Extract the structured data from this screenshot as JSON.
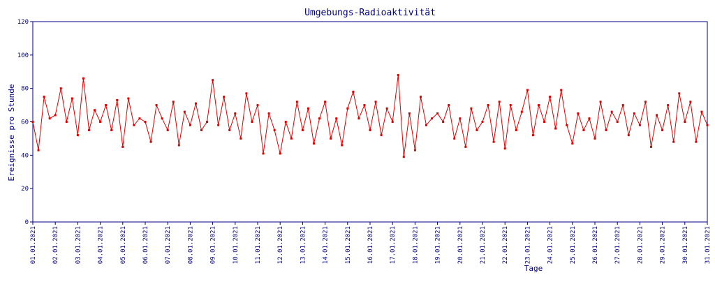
{
  "chart_data": {
    "type": "line",
    "title": "Umgebungs-Radioaktivität",
    "xlabel": "Tage",
    "ylabel": "Ereignisse pro Stunde",
    "color": "#e00000",
    "xlim": [
      0,
      30
    ],
    "ylim": [
      0,
      120
    ],
    "yticks": [
      0,
      20,
      40,
      60,
      80,
      100,
      120
    ],
    "xticks": [
      {
        "value": 0,
        "label": "01.01.2021"
      },
      {
        "value": 1,
        "label": "02.01.2021"
      },
      {
        "value": 2,
        "label": "03.01.2021"
      },
      {
        "value": 3,
        "label": "04.01.2021"
      },
      {
        "value": 4,
        "label": "05.01.2021"
      },
      {
        "value": 5,
        "label": "06.01.2021"
      },
      {
        "value": 6,
        "label": "07.01.2021"
      },
      {
        "value": 7,
        "label": "08.01.2021"
      },
      {
        "value": 8,
        "label": "09.01.2021"
      },
      {
        "value": 9,
        "label": "10.01.2021"
      },
      {
        "value": 10,
        "label": "11.01.2021"
      },
      {
        "value": 11,
        "label": "12.01.2021"
      },
      {
        "value": 12,
        "label": "13.01.2021"
      },
      {
        "value": 13,
        "label": "14.01.2021"
      },
      {
        "value": 14,
        "label": "15.01.2021"
      },
      {
        "value": 15,
        "label": "16.01.2021"
      },
      {
        "value": 16,
        "label": "17.01.2021"
      },
      {
        "value": 17,
        "label": "18.01.2021"
      },
      {
        "value": 18,
        "label": "19.01.2021"
      },
      {
        "value": 19,
        "label": "20.01.2021"
      },
      {
        "value": 20,
        "label": "21.01.2021"
      },
      {
        "value": 21,
        "label": "22.01.2021"
      },
      {
        "value": 22,
        "label": "23.01.2021"
      },
      {
        "value": 23,
        "label": "24.01.2021"
      },
      {
        "value": 24,
        "label": "25.01.2021"
      },
      {
        "value": 25,
        "label": "26.01.2021"
      },
      {
        "value": 26,
        "label": "27.01.2021"
      },
      {
        "value": 27,
        "label": "28.01.2021"
      },
      {
        "value": 28,
        "label": "29.01.2021"
      },
      {
        "value": 29,
        "label": "30.01.2021"
      },
      {
        "value": 30,
        "label": "31.01.2021"
      }
    ],
    "x": [
      0,
      0.25,
      0.5,
      0.75,
      1,
      1.25,
      1.5,
      1.75,
      2,
      2.25,
      2.5,
      2.75,
      3,
      3.25,
      3.5,
      3.75,
      4,
      4.25,
      4.5,
      4.75,
      5,
      5.25,
      5.5,
      5.75,
      6,
      6.25,
      6.5,
      6.75,
      7,
      7.25,
      7.5,
      7.75,
      8,
      8.25,
      8.5,
      8.75,
      9,
      9.25,
      9.5,
      9.75,
      10,
      10.25,
      10.5,
      10.75,
      11,
      11.25,
      11.5,
      11.75,
      12,
      12.25,
      12.5,
      12.75,
      13,
      13.25,
      13.5,
      13.75,
      14,
      14.25,
      14.5,
      14.75,
      15,
      15.25,
      15.5,
      15.75,
      16,
      16.25,
      16.5,
      16.75,
      17,
      17.25,
      17.5,
      17.75,
      18,
      18.25,
      18.5,
      18.75,
      19,
      19.25,
      19.5,
      19.75,
      20,
      20.25,
      20.5,
      20.75,
      21,
      21.25,
      21.5,
      21.75,
      22,
      22.25,
      22.5,
      22.75,
      23,
      23.25,
      23.5,
      23.75,
      24,
      24.25,
      24.5,
      24.75,
      25,
      25.25,
      25.5,
      25.75,
      26,
      26.25,
      26.5,
      26.75,
      27,
      27.25,
      27.5,
      27.75,
      28,
      28.25,
      28.5,
      28.75,
      29,
      29.25,
      29.5,
      29.75,
      30
    ],
    "values": [
      60,
      43,
      75,
      62,
      64,
      80,
      60,
      74,
      52,
      86,
      55,
      67,
      60,
      70,
      55,
      73,
      45,
      74,
      58,
      62,
      60,
      48,
      70,
      62,
      55,
      72,
      46,
      66,
      58,
      71,
      55,
      60,
      85,
      58,
      75,
      55,
      65,
      50,
      77,
      60,
      70,
      41,
      65,
      55,
      41,
      60,
      50,
      72,
      55,
      68,
      47,
      62,
      72,
      50,
      62,
      46,
      68,
      78,
      62,
      70,
      55,
      72,
      52,
      68,
      60,
      88,
      39,
      65,
      43,
      75,
      58,
      62,
      65,
      60,
      70,
      50,
      62,
      45,
      68,
      55,
      60,
      70,
      48,
      72,
      44,
      70,
      55,
      66,
      79,
      52,
      70,
      60,
      75,
      56,
      79,
      58,
      47,
      65,
      55,
      62,
      50,
      72,
      55,
      66,
      60,
      70,
      52,
      65,
      58,
      72,
      45,
      64,
      55,
      70,
      48,
      77,
      60,
      72,
      48,
      66,
      58
    ]
  }
}
